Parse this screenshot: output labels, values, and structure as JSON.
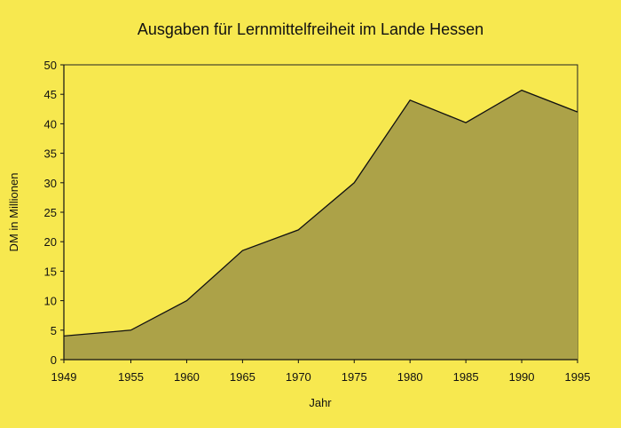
{
  "chart_data": {
    "type": "area",
    "title": "Ausgaben für Lernmittelfreiheit im Lande Hessen",
    "xlabel": "Jahr",
    "ylabel": "DM in Millionen",
    "x": [
      1949,
      1955,
      1960,
      1965,
      1970,
      1975,
      1980,
      1985,
      1990,
      1995
    ],
    "series": [
      {
        "values": [
          4,
          5,
          10,
          18.5,
          22,
          30,
          44,
          40.2,
          45.7,
          42
        ]
      }
    ],
    "xticks": [
      "1949",
      "1955",
      "1960",
      "1965",
      "1970",
      "1975",
      "1980",
      "1985",
      "1990",
      "1995"
    ],
    "yticks": [
      "0",
      "5",
      "10",
      "15",
      "20",
      "25",
      "30",
      "35",
      "40",
      "45",
      "50"
    ],
    "ylim": [
      0,
      50
    ],
    "grid": false,
    "legend": "none",
    "colors": {
      "background": "#f7e84f",
      "area_fill": "#aca248",
      "line": "#111111"
    }
  }
}
